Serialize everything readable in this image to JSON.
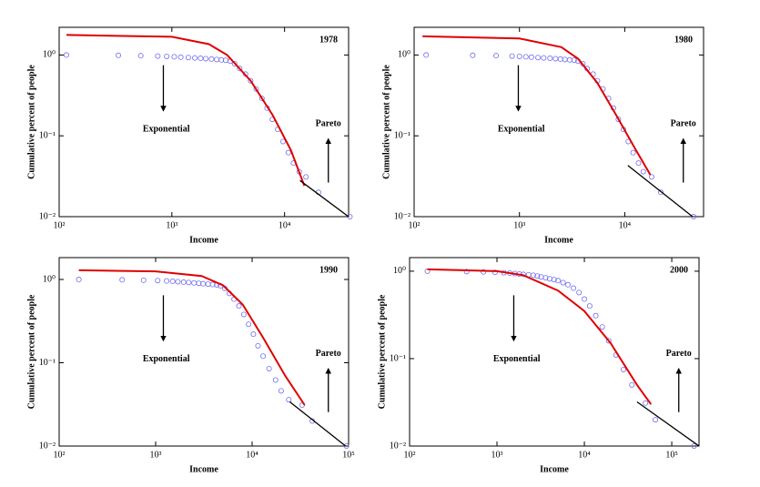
{
  "chart_data": [
    {
      "type": "scatter",
      "title": "1978",
      "xlabel": "Income",
      "ylabel": "Cumulative percent of people",
      "xscale": "log",
      "yscale": "log",
      "xlim": [
        100,
        37000
      ],
      "ylim": [
        0.01,
        2.2
      ],
      "xticks": [
        {
          "value": 100,
          "label": "10²"
        },
        {
          "value": 1000,
          "label": "10³"
        },
        {
          "value": 10000,
          "label": "10⁴"
        }
      ],
      "yticks": [
        {
          "value": 0.01,
          "label": "10⁻²"
        },
        {
          "value": 0.1,
          "label": "10⁻¹"
        },
        {
          "value": 1,
          "label": "10⁰"
        }
      ],
      "annotations": [
        "Exponential",
        "Pareto"
      ],
      "series": [
        {
          "style": "circle",
          "color": "#6f6ff0",
          "x": [
            116,
            335,
            530,
            750,
            900,
            1050,
            1200,
            1400,
            1600,
            1800,
            2000,
            2250,
            2500,
            2750,
            3000,
            3300,
            3600,
            4000,
            4500,
            5000,
            5600,
            6300,
            7000,
            7800,
            8700,
            9700,
            10800,
            12000,
            13500,
            15500,
            20000,
            38000
          ],
          "values": [
            1.0,
            0.99,
            0.98,
            0.97,
            0.96,
            0.95,
            0.94,
            0.93,
            0.92,
            0.91,
            0.9,
            0.89,
            0.88,
            0.87,
            0.86,
            0.84,
            0.78,
            0.68,
            0.58,
            0.48,
            0.38,
            0.29,
            0.22,
            0.16,
            0.12,
            0.085,
            0.062,
            0.046,
            0.036,
            0.031,
            0.02,
            0.01
          ]
        },
        {
          "style": "line",
          "color": "#e00000",
          "x": [
            116,
            1000,
            2130,
            3090,
            5000,
            7850,
            11400,
            15000
          ],
          "values": [
            1.77,
            1.68,
            1.36,
            1.0,
            0.48,
            0.18,
            0.066,
            0.024
          ]
        },
        {
          "style": "line",
          "color": "#000000",
          "x": [
            13700,
            37000
          ],
          "values": [
            0.028,
            0.01
          ]
        }
      ]
    },
    {
      "type": "scatter",
      "title": "1980",
      "xlabel": "Income",
      "ylabel": "Cumulative percent of people",
      "xscale": "log",
      "yscale": "log",
      "xlim": [
        100,
        56000
      ],
      "ylim": [
        0.01,
        2.2
      ],
      "xticks": [
        {
          "value": 100,
          "label": "10²"
        },
        {
          "value": 1000,
          "label": "10³"
        },
        {
          "value": 10000,
          "label": "10⁴"
        }
      ],
      "yticks": [
        {
          "value": 0.01,
          "label": "10⁻²"
        },
        {
          "value": 0.1,
          "label": "10⁻¹"
        },
        {
          "value": 1,
          "label": "10⁰"
        }
      ],
      "annotations": [
        "Exponential",
        "Pareto"
      ],
      "series": [
        {
          "style": "circle",
          "color": "#6f6ff0",
          "x": [
            130,
            360,
            600,
            850,
            1000,
            1150,
            1300,
            1500,
            1700,
            1950,
            2200,
            2450,
            2700,
            3000,
            3300,
            3600,
            4000,
            4400,
            5000,
            5500,
            6200,
            7000,
            7800,
            8700,
            9700,
            10800,
            12000,
            13500,
            15000,
            18000,
            22000,
            45000
          ],
          "values": [
            1.0,
            0.99,
            0.98,
            0.97,
            0.96,
            0.95,
            0.94,
            0.93,
            0.92,
            0.91,
            0.9,
            0.89,
            0.88,
            0.87,
            0.86,
            0.84,
            0.78,
            0.68,
            0.58,
            0.48,
            0.38,
            0.29,
            0.22,
            0.16,
            0.12,
            0.085,
            0.062,
            0.046,
            0.036,
            0.031,
            0.02,
            0.01
          ]
        },
        {
          "style": "line",
          "color": "#e00000",
          "x": [
            120,
            1000,
            2500,
            3600,
            5500,
            8500,
            12500,
            17500
          ],
          "values": [
            1.7,
            1.6,
            1.25,
            0.9,
            0.45,
            0.17,
            0.07,
            0.033
          ]
        },
        {
          "style": "line",
          "color": "#000000",
          "x": [
            10700,
            44000
          ],
          "values": [
            0.043,
            0.01
          ]
        }
      ]
    },
    {
      "type": "scatter",
      "title": "1990",
      "xlabel": "Income",
      "ylabel": "Cumulative percent of people",
      "xscale": "log",
      "yscale": "log",
      "xlim": [
        100,
        100000
      ],
      "ylim": [
        0.01,
        1.83
      ],
      "xticks": [
        {
          "value": 100,
          "label": "10²"
        },
        {
          "value": 1000,
          "label": "10³"
        },
        {
          "value": 10000,
          "label": "10⁴"
        },
        {
          "value": 100000,
          "label": "10⁵"
        }
      ],
      "yticks": [
        {
          "value": 0.01,
          "label": "10⁻²"
        },
        {
          "value": 0.1,
          "label": "10⁻¹"
        },
        {
          "value": 1,
          "label": "10⁰"
        }
      ],
      "annotations": [
        "Exponential",
        "Pareto"
      ],
      "series": [
        {
          "style": "circle",
          "color": "#6f6ff0",
          "x": [
            160,
            450,
            750,
            1050,
            1300,
            1500,
            1700,
            1950,
            2200,
            2500,
            2800,
            3100,
            3500,
            3900,
            4300,
            4700,
            5200,
            5800,
            6500,
            7300,
            8200,
            9200,
            10300,
            11500,
            13000,
            15000,
            17500,
            20000,
            24000,
            33000,
            42000,
            95000
          ],
          "values": [
            1.0,
            0.99,
            0.98,
            0.97,
            0.96,
            0.95,
            0.94,
            0.93,
            0.92,
            0.91,
            0.9,
            0.89,
            0.88,
            0.87,
            0.86,
            0.84,
            0.78,
            0.68,
            0.58,
            0.48,
            0.38,
            0.29,
            0.22,
            0.16,
            0.12,
            0.085,
            0.062,
            0.046,
            0.036,
            0.031,
            0.02,
            0.01
          ]
        },
        {
          "style": "line",
          "color": "#e00000",
          "x": [
            160,
            1000,
            3000,
            5000,
            8000,
            13000,
            22000,
            35000
          ],
          "values": [
            1.29,
            1.25,
            1.1,
            0.85,
            0.5,
            0.2,
            0.07,
            0.031
          ]
        },
        {
          "style": "line",
          "color": "#000000",
          "x": [
            24500,
            93000
          ],
          "values": [
            0.034,
            0.01
          ]
        }
      ]
    },
    {
      "type": "scatter",
      "title": "2000",
      "xlabel": "Income",
      "ylabel": "Cumulative percent of people",
      "xscale": "log",
      "yscale": "log",
      "xlim": [
        100,
        205000
      ],
      "ylim": [
        0.01,
        1.43
      ],
      "xticks": [
        {
          "value": 100,
          "label": "10²"
        },
        {
          "value": 1000,
          "label": "10³"
        },
        {
          "value": 10000,
          "label": "10⁴"
        },
        {
          "value": 100000,
          "label": "10⁵"
        }
      ],
      "yticks": [
        {
          "value": 0.01,
          "label": "10⁻²"
        },
        {
          "value": 0.1,
          "label": "10⁻¹"
        },
        {
          "value": 1,
          "label": "10⁰"
        }
      ],
      "annotations": [
        "Exponential",
        "Pareto"
      ],
      "series": [
        {
          "style": "circle",
          "color": "#6f6ff0",
          "x": [
            160,
            450,
            700,
            950,
            1200,
            1400,
            1600,
            1800,
            2000,
            2300,
            2600,
            2900,
            3200,
            3600,
            4000,
            4500,
            5000,
            5700,
            6500,
            7500,
            8700,
            10000,
            11500,
            13500,
            16000,
            19000,
            23000,
            28000,
            35000,
            50000,
            65000,
            180000
          ],
          "values": [
            1.0,
            0.99,
            0.98,
            0.97,
            0.96,
            0.95,
            0.94,
            0.93,
            0.92,
            0.91,
            0.9,
            0.88,
            0.86,
            0.84,
            0.82,
            0.8,
            0.78,
            0.74,
            0.7,
            0.64,
            0.57,
            0.48,
            0.4,
            0.31,
            0.23,
            0.16,
            0.11,
            0.075,
            0.05,
            0.031,
            0.02,
            0.01
          ]
        },
        {
          "style": "line",
          "color": "#e00000",
          "x": [
            160,
            1000,
            2000,
            5000,
            10000,
            20000,
            40000,
            58000
          ],
          "values": [
            1.05,
            1.0,
            0.9,
            0.6,
            0.35,
            0.15,
            0.05,
            0.03
          ]
        },
        {
          "style": "line",
          "color": "#000000",
          "x": [
            40000,
            205000
          ],
          "values": [
            0.032,
            0.01
          ]
        }
      ]
    }
  ]
}
